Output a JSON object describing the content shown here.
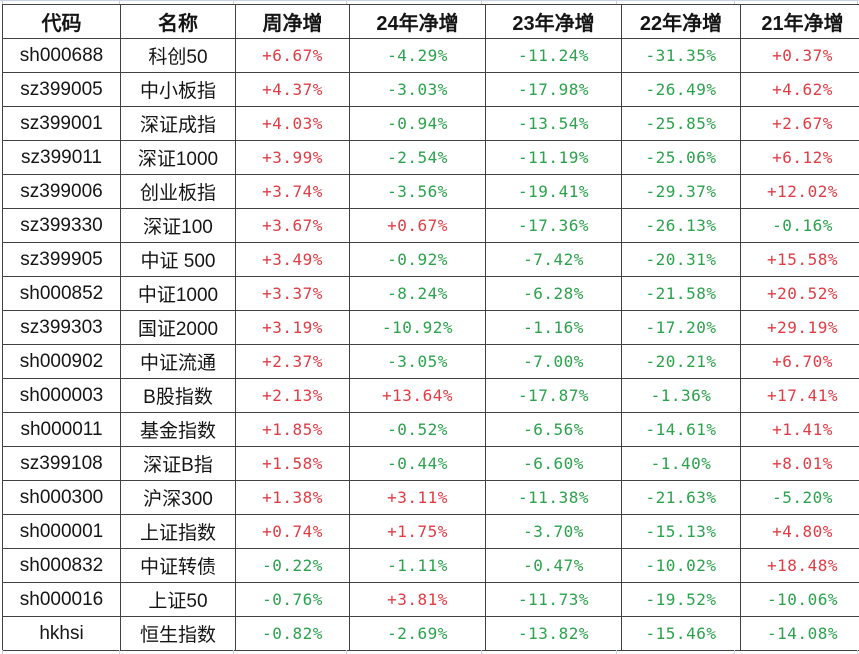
{
  "colors": {
    "positive": "#e13c45",
    "negative": "#2ba24c",
    "text": "#151515",
    "border": "#424242",
    "grid_stub": "#c7d3e2",
    "background": "#ffffff"
  },
  "table": {
    "headers": [
      "代码",
      "名称",
      "周净增",
      "24年净增",
      "23年净增",
      "22年净增",
      "21年净增"
    ],
    "rows": [
      {
        "code": "sh000688",
        "name": "科创50",
        "values": [
          "+6.67%",
          "-4.29%",
          "-11.24%",
          "-31.35%",
          "+0.37%"
        ]
      },
      {
        "code": "sz399005",
        "name": "中小板指",
        "values": [
          "+4.37%",
          "-3.03%",
          "-17.98%",
          "-26.49%",
          "+4.62%"
        ]
      },
      {
        "code": "sz399001",
        "name": "深证成指",
        "values": [
          "+4.03%",
          "-0.94%",
          "-13.54%",
          "-25.85%",
          "+2.67%"
        ]
      },
      {
        "code": "sz399011",
        "name": "深证1000",
        "values": [
          "+3.99%",
          "-2.54%",
          "-11.19%",
          "-25.06%",
          "+6.12%"
        ]
      },
      {
        "code": "sz399006",
        "name": "创业板指",
        "values": [
          "+3.74%",
          "-3.56%",
          "-19.41%",
          "-29.37%",
          "+12.02%"
        ]
      },
      {
        "code": "sz399330",
        "name": "深证100",
        "values": [
          "+3.67%",
          "+0.67%",
          "-17.36%",
          "-26.13%",
          "-0.16%"
        ]
      },
      {
        "code": "sz399905",
        "name": "中证 500",
        "values": [
          "+3.49%",
          "-0.92%",
          "-7.42%",
          "-20.31%",
          "+15.58%"
        ]
      },
      {
        "code": "sh000852",
        "name": "中证1000",
        "values": [
          "+3.37%",
          "-8.24%",
          "-6.28%",
          "-21.58%",
          "+20.52%"
        ]
      },
      {
        "code": "sz399303",
        "name": "国证2000",
        "values": [
          "+3.19%",
          "-10.92%",
          "-1.16%",
          "-17.20%",
          "+29.19%"
        ]
      },
      {
        "code": "sh000902",
        "name": "中证流通",
        "values": [
          "+2.37%",
          "-3.05%",
          "-7.00%",
          "-20.21%",
          "+6.70%"
        ]
      },
      {
        "code": "sh000003",
        "name": "B股指数",
        "values": [
          "+2.13%",
          "+13.64%",
          "-17.87%",
          "-1.36%",
          "+17.41%"
        ]
      },
      {
        "code": "sh000011",
        "name": "基金指数",
        "values": [
          "+1.85%",
          "-0.52%",
          "-6.56%",
          "-14.61%",
          "+1.41%"
        ]
      },
      {
        "code": "sz399108",
        "name": "深证B指",
        "values": [
          "+1.58%",
          "-0.44%",
          "-6.60%",
          "-1.40%",
          "+8.01%"
        ]
      },
      {
        "code": "sh000300",
        "name": "沪深300",
        "values": [
          "+1.38%",
          "+3.11%",
          "-11.38%",
          "-21.63%",
          "-5.20%"
        ]
      },
      {
        "code": "sh000001",
        "name": "上证指数",
        "values": [
          "+0.74%",
          "+1.75%",
          "-3.70%",
          "-15.13%",
          "+4.80%"
        ]
      },
      {
        "code": "sh000832",
        "name": "中证转债",
        "values": [
          "-0.22%",
          "-1.11%",
          "-0.47%",
          "-10.02%",
          "+18.48%"
        ]
      },
      {
        "code": "sh000016",
        "name": "上证50",
        "values": [
          "-0.76%",
          "+3.81%",
          "-11.73%",
          "-19.52%",
          "-10.06%"
        ]
      },
      {
        "code": "hkhsi",
        "name": "恒生指数",
        "values": [
          "-0.82%",
          "-2.69%",
          "-13.82%",
          "-15.46%",
          "-14.08%"
        ]
      }
    ]
  }
}
